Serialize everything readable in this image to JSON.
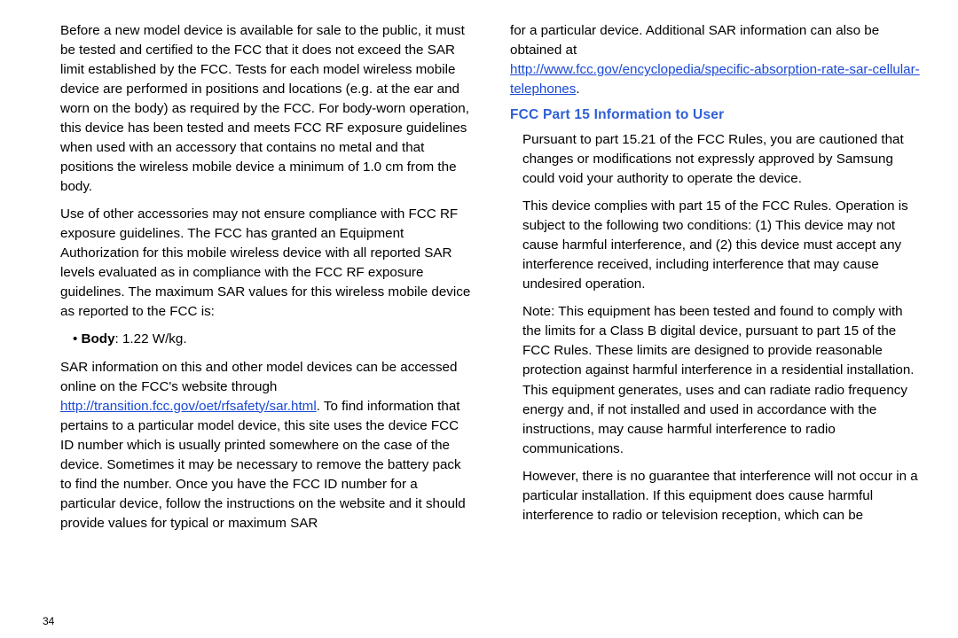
{
  "page_number": "34",
  "heading_color": "#2f5fd6",
  "link_color": "#1a49d6",
  "left": {
    "p1": "Before a new model device is available for sale to the public, it must be tested and certified to the FCC that it does not exceed the SAR limit established by the FCC. Tests for each model wireless mobile device are performed in positions and locations (e.g. at the ear and worn on the body) as required by the FCC. For body-worn operation, this device has been tested and meets FCC RF exposure guidelines when used with an accessory that contains no metal and that positions the wireless mobile device a minimum of 1.0 cm from the body.",
    "p2": "Use of other accessories may not ensure compliance with FCC RF exposure guidelines. The FCC has granted an Equipment Authorization for this mobile wireless device with all reported SAR levels evaluated as in compliance with the FCC RF exposure guidelines. The maximum SAR values for this wireless mobile device as reported to the FCC is:",
    "bullet_label": "Body",
    "bullet_value": ": 1.22 W/kg.",
    "p3_a": "SAR information on this and other model devices can be accessed online on the FCC's website through ",
    "p3_link": "http://transition.fcc.gov/oet/rfsafety/sar.html",
    "p3_b": ". To find information that pertains to a particular model device, this site uses the device FCC ID number which is usually printed somewhere on the case of the device. Sometimes it may be necessary to remove the battery pack to find the number. Once you have the FCC ID number for a particular device, follow the instructions on the website and it should provide values for typical or maximum SAR"
  },
  "right": {
    "p0_a": "for a particular device. Additional SAR information can also be obtained at",
    "p0_link": "http://www.fcc.gov/encyclopedia/specific-absorption-rate-sar-cellular-telephones",
    "p0_b": ".",
    "heading": "FCC Part 15 Information to User",
    "p1": "Pursuant to part 15.21 of the FCC Rules, you are cautioned that changes or modifications not expressly approved by Samsung could void your authority to operate the device.",
    "p2": "This device complies with part 15 of the FCC Rules. Operation is subject to the following two conditions: (1) This device may not cause harmful interference, and (2) this device must accept any interference received, including interference that may cause undesired operation.",
    "p3": "Note: This equipment has been tested and found to comply with the limits for a Class B digital device, pursuant to part 15 of the FCC Rules. These limits are designed to provide reasonable protection against harmful interference in a residential installation. This equipment generates, uses and can radiate radio frequency energy and, if not installed and used in accordance with the instructions, may cause harmful interference to radio communications.",
    "p4": "However, there is no guarantee that interference will not occur in a particular installation. If this equipment does cause harmful interference to radio or television reception, which can be"
  }
}
